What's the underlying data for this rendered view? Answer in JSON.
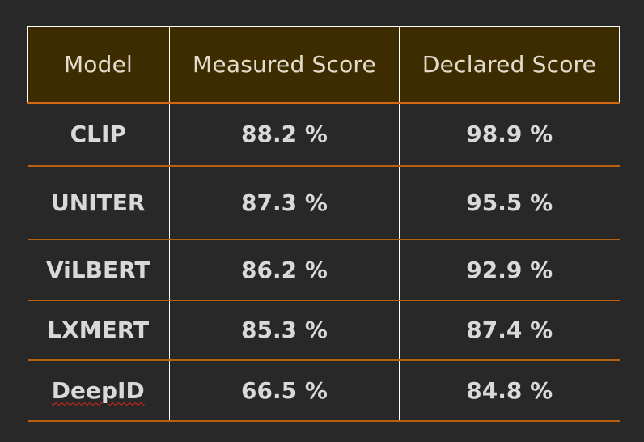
{
  "table": {
    "headers": [
      "Model",
      "Measured Score",
      "Declared Score"
    ],
    "rows": [
      {
        "model": "CLIP",
        "measured": "88.2 %",
        "declared": "98.9 %"
      },
      {
        "model": "UNITER",
        "measured": "87.3 %",
        "declared": "95.5 %"
      },
      {
        "model": "ViLBERT",
        "measured": "86.2 %",
        "declared": "92.9 %"
      },
      {
        "model": "LXMERT",
        "measured": "85.3 %",
        "declared": "87.4 %"
      },
      {
        "model": "DeepID",
        "measured": "66.5 %",
        "declared": "84.8 %"
      }
    ]
  },
  "colors": {
    "background": "#282828",
    "header_background": "#3c2c00",
    "row_divider": "#b85f10",
    "text": "#d9d9d9"
  }
}
